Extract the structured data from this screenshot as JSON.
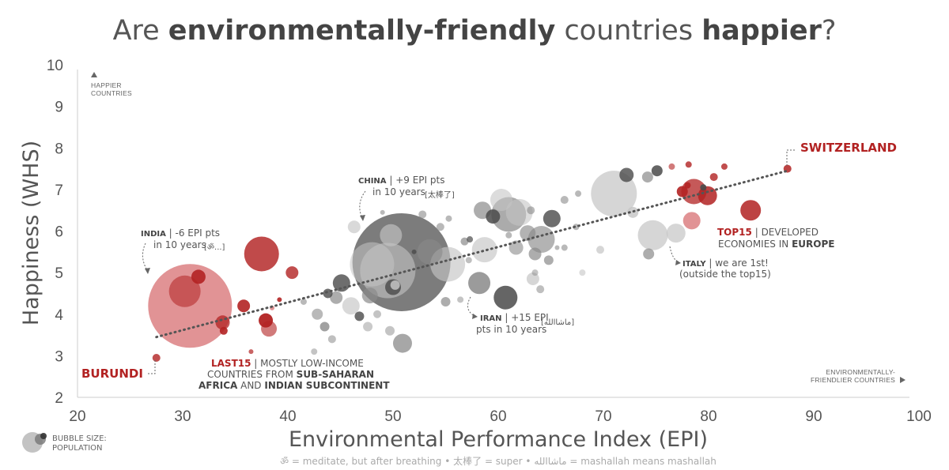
{
  "chart_data": {
    "type": "scatter",
    "title": "Are environmentally-friendly countries happier?",
    "title_parts": [
      {
        "text": "Are ",
        "bold": false
      },
      {
        "text": "environmentally-friendly",
        "bold": true
      },
      {
        "text": " countries ",
        "bold": false
      },
      {
        "text": "happier",
        "bold": true
      },
      {
        "text": "?",
        "bold": false
      }
    ],
    "xlabel": "Environmental Performance Index (EPI)",
    "ylabel": "Happiness (WHS)",
    "xlim": [
      20,
      100
    ],
    "ylim": [
      2,
      10
    ],
    "xticks": [
      "20",
      "30",
      "40",
      "50",
      "60",
      "70",
      "80",
      "90",
      "100"
    ],
    "yticks": [
      "2",
      "3",
      "4",
      "5",
      "6",
      "7",
      "8",
      "9",
      "10"
    ],
    "y_axis_note": [
      "HAPPIER",
      "COUNTRIES"
    ],
    "x_axis_note": [
      "ENVIRONMENTALLY-",
      "FRIENDLIER COUNTRIES"
    ],
    "trendline": {
      "x": [
        27.5,
        87.5
      ],
      "y": [
        3.45,
        7.45
      ]
    },
    "colors": {
      "red": "#b22222",
      "light_red": "#d9787a",
      "gray": "#8a8a8a",
      "dark_gray": "#4a4a4a",
      "light_gray": "#c4c4c4"
    },
    "points": [
      {
        "x": 30.7,
        "y": 4.2,
        "r": 53,
        "c": "light_red",
        "o": 0.8
      },
      {
        "x": 37.5,
        "y": 5.45,
        "r": 22,
        "c": "red",
        "o": 0.82
      },
      {
        "x": 30.2,
        "y": 4.55,
        "r": 20,
        "c": "red",
        "o": 0.55
      },
      {
        "x": 31.5,
        "y": 4.9,
        "r": 9,
        "c": "red",
        "o": 0.9
      },
      {
        "x": 35.8,
        "y": 4.2,
        "r": 8,
        "c": "red",
        "o": 0.9
      },
      {
        "x": 33.8,
        "y": 3.8,
        "r": 9,
        "c": "red",
        "o": 0.75
      },
      {
        "x": 33.9,
        "y": 3.6,
        "r": 5,
        "c": "red",
        "o": 0.9
      },
      {
        "x": 37.9,
        "y": 3.85,
        "r": 9,
        "c": "red",
        "o": 0.95
      },
      {
        "x": 38.2,
        "y": 3.65,
        "r": 10,
        "c": "red",
        "o": 0.6
      },
      {
        "x": 40.4,
        "y": 5.0,
        "r": 8,
        "c": "red",
        "o": 0.8
      },
      {
        "x": 39.2,
        "y": 4.35,
        "r": 3,
        "c": "red",
        "o": 0.9
      },
      {
        "x": 36.5,
        "y": 3.1,
        "r": 3,
        "c": "red",
        "o": 0.7
      },
      {
        "x": 38.5,
        "y": 4.15,
        "r": 3,
        "c": "light_red",
        "o": 0.8
      },
      {
        "x": 27.5,
        "y": 2.95,
        "r": 5,
        "c": "red",
        "o": 0.8
      },
      {
        "x": 50.8,
        "y": 5.25,
        "r": 62,
        "c": "dark_gray",
        "o": 0.72
      },
      {
        "x": 49.5,
        "y": 5.05,
        "r": 35,
        "c": "light_gray",
        "o": 0.6
      },
      {
        "x": 48.0,
        "y": 5.2,
        "r": 28,
        "c": "light_gray",
        "o": 0.55
      },
      {
        "x": 49.8,
        "y": 5.9,
        "r": 14,
        "c": "light_gray",
        "o": 0.65
      },
      {
        "x": 50.0,
        "y": 4.65,
        "r": 10,
        "c": "dark_gray",
        "o": 0.8
      },
      {
        "x": 50.2,
        "y": 4.7,
        "r": 6,
        "c": "light_gray",
        "o": 0.85
      },
      {
        "x": 55.2,
        "y": 5.2,
        "r": 22,
        "c": "light_gray",
        "o": 0.65
      },
      {
        "x": 53.5,
        "y": 5.5,
        "r": 16,
        "c": "gray",
        "o": 0.6
      },
      {
        "x": 61.0,
        "y": 6.4,
        "r": 22,
        "c": "gray",
        "o": 0.72
      },
      {
        "x": 58.5,
        "y": 6.5,
        "r": 11,
        "c": "gray",
        "o": 0.7
      },
      {
        "x": 59.5,
        "y": 6.35,
        "r": 9,
        "c": "dark_gray",
        "o": 0.85
      },
      {
        "x": 60.3,
        "y": 6.75,
        "r": 14,
        "c": "light_gray",
        "o": 0.6
      },
      {
        "x": 62.0,
        "y": 6.45,
        "r": 17,
        "c": "light_gray",
        "o": 0.6
      },
      {
        "x": 58.7,
        "y": 5.55,
        "r": 16,
        "c": "light_gray",
        "o": 0.65
      },
      {
        "x": 58.2,
        "y": 4.75,
        "r": 14,
        "c": "gray",
        "o": 0.85
      },
      {
        "x": 60.7,
        "y": 4.4,
        "r": 15,
        "c": "dark_gray",
        "o": 0.85
      },
      {
        "x": 65.1,
        "y": 6.3,
        "r": 11,
        "c": "dark_gray",
        "o": 0.8
      },
      {
        "x": 64.1,
        "y": 5.8,
        "r": 17,
        "c": "gray",
        "o": 0.65
      },
      {
        "x": 62.8,
        "y": 5.95,
        "r": 10,
        "c": "gray",
        "o": 0.65
      },
      {
        "x": 63.5,
        "y": 5.45,
        "r": 8,
        "c": "gray",
        "o": 0.7
      },
      {
        "x": 61.7,
        "y": 5.6,
        "r": 9,
        "c": "gray",
        "o": 0.6
      },
      {
        "x": 63.3,
        "y": 4.85,
        "r": 8,
        "c": "light_gray",
        "o": 0.7
      },
      {
        "x": 64.8,
        "y": 5.3,
        "r": 6,
        "c": "gray",
        "o": 0.7
      },
      {
        "x": 71.0,
        "y": 6.9,
        "r": 29,
        "c": "light_gray",
        "o": 0.7
      },
      {
        "x": 72.2,
        "y": 7.35,
        "r": 9,
        "c": "dark_gray",
        "o": 0.8
      },
      {
        "x": 74.7,
        "y": 5.9,
        "r": 19,
        "c": "light_gray",
        "o": 0.7
      },
      {
        "x": 76.9,
        "y": 5.95,
        "r": 12,
        "c": "light_gray",
        "o": 0.7
      },
      {
        "x": 75.1,
        "y": 7.45,
        "r": 7,
        "c": "dark_gray",
        "o": 0.85
      },
      {
        "x": 74.2,
        "y": 7.3,
        "r": 7,
        "c": "gray",
        "o": 0.7
      },
      {
        "x": 72.8,
        "y": 6.45,
        "r": 7,
        "c": "light_gray",
        "o": 0.8
      },
      {
        "x": 74.3,
        "y": 5.45,
        "r": 7,
        "c": "gray",
        "o": 0.7
      },
      {
        "x": 69.7,
        "y": 5.55,
        "r": 5,
        "c": "light_gray",
        "o": 0.7
      },
      {
        "x": 78.6,
        "y": 6.95,
        "r": 16,
        "c": "red",
        "o": 0.75
      },
      {
        "x": 79.9,
        "y": 6.85,
        "r": 12,
        "c": "red",
        "o": 0.85
      },
      {
        "x": 78.4,
        "y": 6.25,
        "r": 11,
        "c": "light_red",
        "o": 0.8
      },
      {
        "x": 84.0,
        "y": 6.5,
        "r": 13,
        "c": "red",
        "o": 0.85
      },
      {
        "x": 77.5,
        "y": 6.95,
        "r": 7,
        "c": "red",
        "o": 0.9
      },
      {
        "x": 78.0,
        "y": 7.1,
        "r": 4,
        "c": "red",
        "o": 0.9
      },
      {
        "x": 78.1,
        "y": 7.6,
        "r": 4,
        "c": "red",
        "o": 0.8
      },
      {
        "x": 79.5,
        "y": 7.05,
        "r": 4,
        "c": "dark_gray",
        "o": 0.9
      },
      {
        "x": 80.5,
        "y": 7.3,
        "r": 5,
        "c": "red",
        "o": 0.8
      },
      {
        "x": 81.5,
        "y": 7.55,
        "r": 4,
        "c": "red",
        "o": 0.8
      },
      {
        "x": 87.5,
        "y": 7.5,
        "r": 5,
        "c": "red",
        "o": 0.85
      },
      {
        "x": 76.5,
        "y": 7.55,
        "r": 4,
        "c": "red",
        "o": 0.6
      },
      {
        "x": 45.1,
        "y": 4.75,
        "r": 11,
        "c": "dark_gray",
        "o": 0.8
      },
      {
        "x": 44.6,
        "y": 4.4,
        "r": 8,
        "c": "gray",
        "o": 0.7
      },
      {
        "x": 43.8,
        "y": 4.5,
        "r": 6,
        "c": "dark_gray",
        "o": 0.8
      },
      {
        "x": 46.0,
        "y": 4.2,
        "r": 11,
        "c": "light_gray",
        "o": 0.65
      },
      {
        "x": 47.8,
        "y": 4.45,
        "r": 10,
        "c": "gray",
        "o": 0.7
      },
      {
        "x": 42.8,
        "y": 4.0,
        "r": 7,
        "c": "gray",
        "o": 0.6
      },
      {
        "x": 43.5,
        "y": 3.7,
        "r": 6,
        "c": "gray",
        "o": 0.8
      },
      {
        "x": 41.5,
        "y": 4.3,
        "r": 4,
        "c": "gray",
        "o": 0.6
      },
      {
        "x": 44.2,
        "y": 3.4,
        "r": 5,
        "c": "gray",
        "o": 0.55
      },
      {
        "x": 46.8,
        "y": 3.95,
        "r": 6,
        "c": "dark_gray",
        "o": 0.8
      },
      {
        "x": 47.6,
        "y": 3.7,
        "r": 6,
        "c": "gray",
        "o": 0.45
      },
      {
        "x": 48.5,
        "y": 4.0,
        "r": 5,
        "c": "gray",
        "o": 0.5
      },
      {
        "x": 50.9,
        "y": 3.3,
        "r": 12,
        "c": "gray",
        "o": 0.75
      },
      {
        "x": 49.7,
        "y": 3.6,
        "r": 6,
        "c": "gray",
        "o": 0.5
      },
      {
        "x": 55.0,
        "y": 4.3,
        "r": 6,
        "c": "gray",
        "o": 0.7
      },
      {
        "x": 46.3,
        "y": 6.1,
        "r": 8,
        "c": "light_gray",
        "o": 0.65
      },
      {
        "x": 52.8,
        "y": 6.4,
        "r": 5,
        "c": "gray",
        "o": 0.6
      },
      {
        "x": 54.5,
        "y": 6.1,
        "r": 5,
        "c": "gray",
        "o": 0.6
      },
      {
        "x": 55.3,
        "y": 6.3,
        "r": 4,
        "c": "gray",
        "o": 0.6
      },
      {
        "x": 56.8,
        "y": 5.75,
        "r": 5,
        "c": "gray",
        "o": 0.7
      },
      {
        "x": 57.3,
        "y": 5.8,
        "r": 4,
        "c": "dark_gray",
        "o": 0.7
      },
      {
        "x": 56.4,
        "y": 4.35,
        "r": 4,
        "c": "gray",
        "o": 0.5
      },
      {
        "x": 63.1,
        "y": 6.5,
        "r": 5,
        "c": "gray",
        "o": 0.6
      },
      {
        "x": 66.3,
        "y": 6.75,
        "r": 5,
        "c": "gray",
        "o": 0.6
      },
      {
        "x": 67.6,
        "y": 6.9,
        "r": 4,
        "c": "gray",
        "o": 0.6
      },
      {
        "x": 67.4,
        "y": 6.1,
        "r": 4,
        "c": "gray",
        "o": 0.6
      },
      {
        "x": 66.3,
        "y": 5.6,
        "r": 4,
        "c": "gray",
        "o": 0.6
      },
      {
        "x": 64.0,
        "y": 4.6,
        "r": 5,
        "c": "gray",
        "o": 0.55
      },
      {
        "x": 63.5,
        "y": 5.0,
        "r": 4,
        "c": "gray",
        "o": 0.5
      },
      {
        "x": 68.0,
        "y": 5.0,
        "r": 4,
        "c": "light_gray",
        "o": 0.6
      },
      {
        "x": 61.0,
        "y": 5.9,
        "r": 4,
        "c": "gray",
        "o": 0.6
      },
      {
        "x": 57.2,
        "y": 5.3,
        "r": 4,
        "c": "gray",
        "o": 0.55
      },
      {
        "x": 52.0,
        "y": 5.5,
        "r": 3,
        "c": "dark_gray",
        "o": 0.8
      },
      {
        "x": 42.5,
        "y": 3.1,
        "r": 4,
        "c": "gray",
        "o": 0.5
      },
      {
        "x": 49.0,
        "y": 6.45,
        "r": 3,
        "c": "gray",
        "o": 0.6
      },
      {
        "x": 65.6,
        "y": 5.6,
        "r": 3,
        "c": "gray",
        "o": 0.6
      }
    ],
    "annotations": {
      "china": {
        "name": "CHINA",
        "l1": " | +9 EPI pts",
        "l2": "in 10 years",
        "tag": "[太棒了]"
      },
      "india": {
        "name": "INDIA",
        "l1": " | -6 EPI pts",
        "l2": "in 10 years",
        "tag": "[ॐ...]"
      },
      "iran": {
        "name": "IRAN",
        "l1": " | +15 EPI",
        "l2": "pts in 10 years",
        "tag": "[ماشاالله]"
      },
      "italy": {
        "name": "ITALY",
        "l1": " | we are 1st!",
        "l2": "(outside the top15)"
      },
      "top15": {
        "name": "TOP15",
        "l1": " | DEVELOPED",
        "l2a": "ECONOMIES IN ",
        "l2b": "EUROPE"
      },
      "last15": {
        "name": "LAST15",
        "l1": " | MOSTLY LOW-INCOME",
        "l2a": "COUNTRIES FROM ",
        "l2b": "SUB-SAHARAN",
        "l3a": "AFRICA",
        "l3b": " AND ",
        "l3c": "INDIAN SUBCONTINENT"
      },
      "switzerland": "SWITZERLAND",
      "burundi": "BURUNDI"
    },
    "legend": {
      "label1": "BUBBLE SIZE:",
      "label2": "POPULATION"
    },
    "footnote": {
      "s1": "ॐ",
      "t1": " = meditate, but after breathing",
      "sep": "  •  ",
      "s2": "太棒了",
      "t2": " = super",
      "s3": "ماشاالله",
      "t3": " = mashallah means mashallah"
    }
  }
}
